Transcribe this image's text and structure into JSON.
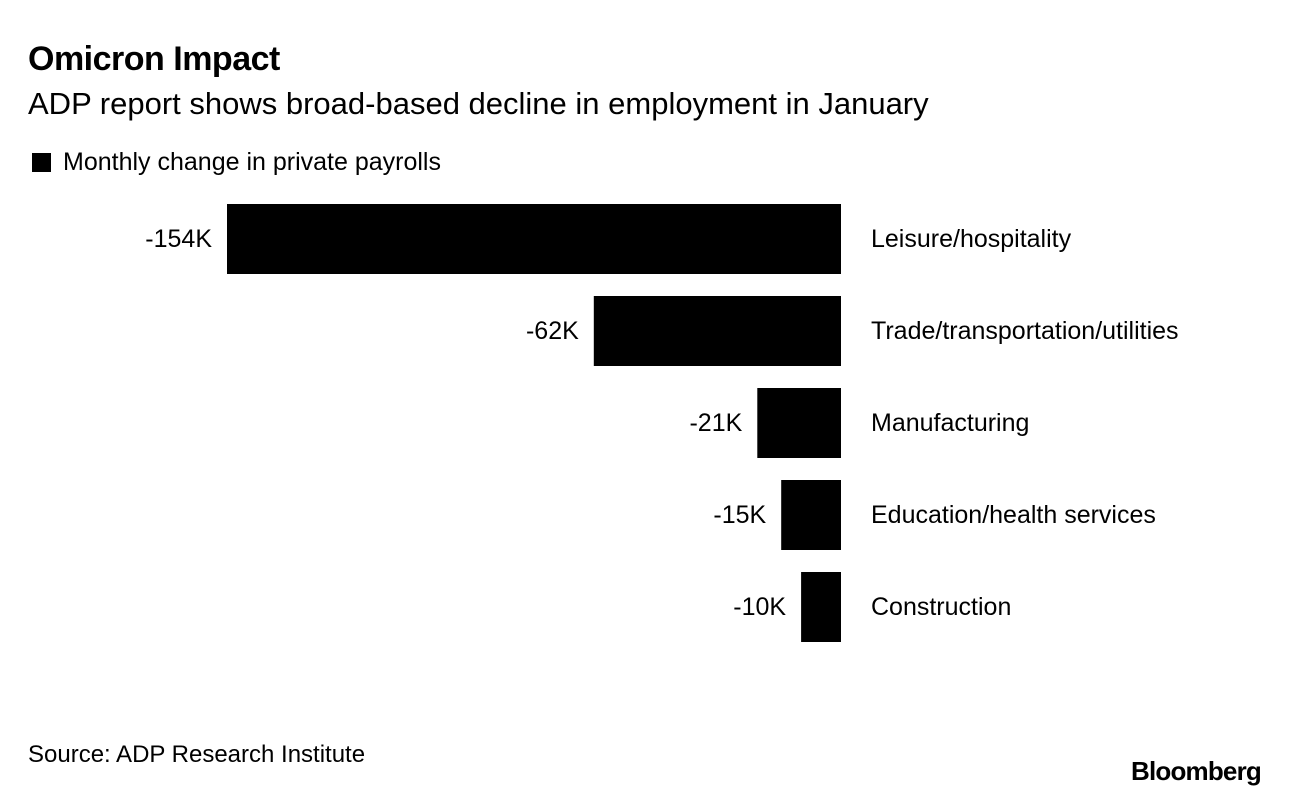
{
  "header": {
    "title": "Omicron Impact",
    "subtitle": "ADP report shows broad-based decline in employment in January"
  },
  "legend": {
    "label": "Monthly change in private payrolls",
    "color": "#000000"
  },
  "chart_data": {
    "type": "bar",
    "orientation": "horizontal",
    "title": "Omicron Impact",
    "subtitle": "ADP report shows broad-based decline in employment in January",
    "series": [
      {
        "name": "Monthly change in private payrolls",
        "values": [
          -154,
          -62,
          -21,
          -15,
          -10
        ]
      }
    ],
    "categories": [
      "Leisure/hospitality",
      "Trade/transportation/utilities",
      "Manufacturing",
      "Education/health services",
      "Construction"
    ],
    "values": [
      -154,
      -62,
      -21,
      -15,
      -10
    ],
    "value_labels": [
      "-154K",
      "-62K",
      "-21K",
      "-15K",
      "-10K"
    ],
    "unit": "thousands",
    "xlim": [
      -154,
      0
    ],
    "xlabel": "",
    "ylabel": "",
    "grid": false,
    "legend_position": "top-left"
  },
  "footer": {
    "source": "Source: ADP Research Institute",
    "brand": "Bloomberg"
  }
}
